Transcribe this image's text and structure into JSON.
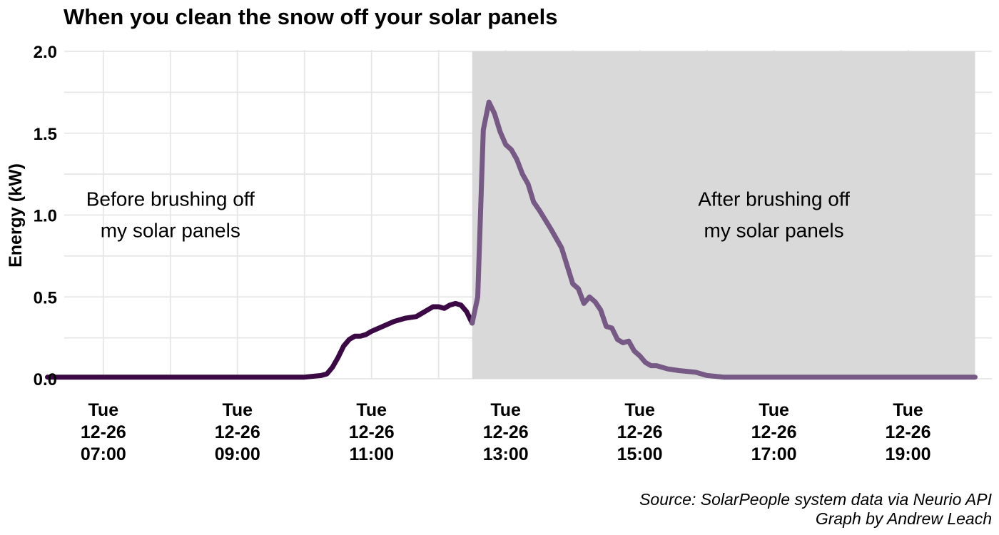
{
  "chart_data": {
    "type": "line",
    "title": "When you clean the snow off your solar panels",
    "xlabel": "",
    "ylabel": "Energy (kW)",
    "ylim": [
      0,
      2.0
    ],
    "yticks": [
      0.0,
      0.5,
      1.0,
      1.5,
      2.0
    ],
    "ytick_labels": [
      "0.0",
      "0.5",
      "1.0",
      "1.5",
      "2.0"
    ],
    "xlim": [
      "2023-12-26 06:25",
      "2023-12-26 20:15"
    ],
    "xticks": [
      {
        "value": "2023-12-26 07:00",
        "lines": [
          "Tue",
          "12-26",
          "07:00"
        ]
      },
      {
        "value": "2023-12-26 09:00",
        "lines": [
          "Tue",
          "12-26",
          "09:00"
        ]
      },
      {
        "value": "2023-12-26 11:00",
        "lines": [
          "Tue",
          "12-26",
          "11:00"
        ]
      },
      {
        "value": "2023-12-26 13:00",
        "lines": [
          "Tue",
          "12-26",
          "13:00"
        ]
      },
      {
        "value": "2023-12-26 15:00",
        "lines": [
          "Tue",
          "12-26",
          "15:00"
        ]
      },
      {
        "value": "2023-12-26 17:00",
        "lines": [
          "Tue",
          "12-26",
          "17:00"
        ]
      },
      {
        "value": "2023-12-26 19:00",
        "lines": [
          "Tue",
          "12-26",
          "19:00"
        ]
      }
    ],
    "grid": true,
    "legend": "none",
    "shaded_region": {
      "x_start": "2023-12-26 12:30",
      "x_end": "2023-12-26 20:00",
      "y_range": [
        0,
        2.0
      ],
      "color": "#d9d9d9"
    },
    "annotations": [
      {
        "x": "2023-12-26 08:00",
        "y": 1.0,
        "lines": [
          "Before brushing off",
          "my solar panels"
        ]
      },
      {
        "x": "2023-12-26 17:00",
        "y": 1.0,
        "lines": [
          "After brushing off",
          "my solar panels"
        ]
      }
    ],
    "series": [
      {
        "color": "#3b0a45",
        "points": [
          [
            "2023-12-26 06:10",
            0.01
          ],
          [
            "2023-12-26 06:30",
            0.01
          ],
          [
            "2023-12-26 07:00",
            0.01
          ],
          [
            "2023-12-26 07:30",
            0.01
          ],
          [
            "2023-12-26 08:00",
            0.01
          ],
          [
            "2023-12-26 08:30",
            0.01
          ],
          [
            "2023-12-26 09:00",
            0.01
          ],
          [
            "2023-12-26 09:30",
            0.01
          ],
          [
            "2023-12-26 10:00",
            0.01
          ],
          [
            "2023-12-26 10:15",
            0.02
          ],
          [
            "2023-12-26 10:20",
            0.03
          ],
          [
            "2023-12-26 10:25",
            0.07
          ],
          [
            "2023-12-26 10:30",
            0.13
          ],
          [
            "2023-12-26 10:35",
            0.2
          ],
          [
            "2023-12-26 10:40",
            0.24
          ],
          [
            "2023-12-26 10:45",
            0.26
          ],
          [
            "2023-12-26 10:50",
            0.26
          ],
          [
            "2023-12-26 10:55",
            0.27
          ],
          [
            "2023-12-26 11:00",
            0.29
          ],
          [
            "2023-12-26 11:10",
            0.32
          ],
          [
            "2023-12-26 11:20",
            0.35
          ],
          [
            "2023-12-26 11:30",
            0.37
          ],
          [
            "2023-12-26 11:40",
            0.38
          ],
          [
            "2023-12-26 11:45",
            0.4
          ],
          [
            "2023-12-26 11:50",
            0.42
          ],
          [
            "2023-12-26 11:55",
            0.44
          ],
          [
            "2023-12-26 12:00",
            0.44
          ],
          [
            "2023-12-26 12:05",
            0.43
          ],
          [
            "2023-12-26 12:10",
            0.45
          ],
          [
            "2023-12-26 12:15",
            0.46
          ],
          [
            "2023-12-26 12:20",
            0.45
          ],
          [
            "2023-12-26 12:25",
            0.41
          ],
          [
            "2023-12-26 12:30",
            0.34
          ]
        ]
      },
      {
        "color": "#765a85",
        "points": [
          [
            "2023-12-26 12:30",
            0.34
          ],
          [
            "2023-12-26 12:35",
            0.5
          ],
          [
            "2023-12-26 12:40",
            1.52
          ],
          [
            "2023-12-26 12:45",
            1.69
          ],
          [
            "2023-12-26 12:50",
            1.62
          ],
          [
            "2023-12-26 12:55",
            1.51
          ],
          [
            "2023-12-26 13:00",
            1.43
          ],
          [
            "2023-12-26 13:05",
            1.4
          ],
          [
            "2023-12-26 13:10",
            1.34
          ],
          [
            "2023-12-26 13:15",
            1.25
          ],
          [
            "2023-12-26 13:20",
            1.19
          ],
          [
            "2023-12-26 13:25",
            1.08
          ],
          [
            "2023-12-26 13:30",
            1.03
          ],
          [
            "2023-12-26 13:40",
            0.92
          ],
          [
            "2023-12-26 13:50",
            0.8
          ],
          [
            "2023-12-26 14:00",
            0.58
          ],
          [
            "2023-12-26 14:05",
            0.55
          ],
          [
            "2023-12-26 14:10",
            0.46
          ],
          [
            "2023-12-26 14:15",
            0.5
          ],
          [
            "2023-12-26 14:20",
            0.47
          ],
          [
            "2023-12-26 14:25",
            0.42
          ],
          [
            "2023-12-26 14:30",
            0.32
          ],
          [
            "2023-12-26 14:35",
            0.31
          ],
          [
            "2023-12-26 14:40",
            0.24
          ],
          [
            "2023-12-26 14:45",
            0.22
          ],
          [
            "2023-12-26 14:50",
            0.23
          ],
          [
            "2023-12-26 14:55",
            0.17
          ],
          [
            "2023-12-26 15:00",
            0.14
          ],
          [
            "2023-12-26 15:05",
            0.1
          ],
          [
            "2023-12-26 15:10",
            0.08
          ],
          [
            "2023-12-26 15:15",
            0.08
          ],
          [
            "2023-12-26 15:25",
            0.06
          ],
          [
            "2023-12-26 15:35",
            0.05
          ],
          [
            "2023-12-26 15:50",
            0.04
          ],
          [
            "2023-12-26 16:00",
            0.02
          ],
          [
            "2023-12-26 16:15",
            0.01
          ],
          [
            "2023-12-26 16:30",
            0.01
          ],
          [
            "2023-12-26 17:00",
            0.01
          ],
          [
            "2023-12-26 17:30",
            0.01
          ],
          [
            "2023-12-26 18:00",
            0.01
          ],
          [
            "2023-12-26 18:30",
            0.01
          ],
          [
            "2023-12-26 19:00",
            0.01
          ],
          [
            "2023-12-26 19:30",
            0.01
          ],
          [
            "2023-12-26 20:00",
            0.01
          ]
        ]
      }
    ]
  },
  "caption": {
    "line1": "Source: SolarPeople system data via Neurio API",
    "line2": "Graph by Andrew Leach"
  }
}
